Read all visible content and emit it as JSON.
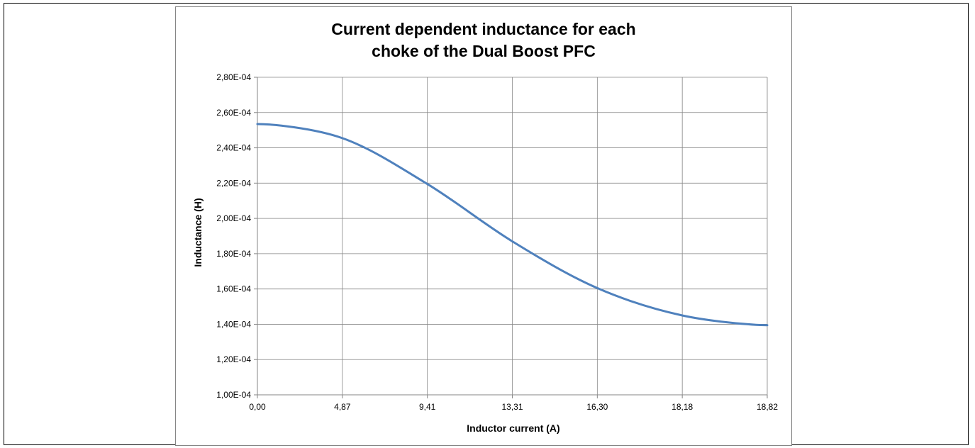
{
  "chart_data": {
    "type": "line",
    "title_lines": [
      "Current dependent inductance for each",
      "choke of the Dual Boost PFC"
    ],
    "xlabel": "Inductor current (A)",
    "ylabel": "Inductance (H)",
    "x_tick_labels": [
      "0,00",
      "4,87",
      "9,41",
      "13,31",
      "16,30",
      "18,18",
      "18,82"
    ],
    "y_tick_labels": [
      "1,00E-04",
      "1,20E-04",
      "1,40E-04",
      "1,60E-04",
      "1,80E-04",
      "2,00E-04",
      "2,20E-04",
      "2,40E-04",
      "2,60E-04",
      "2,80E-04"
    ],
    "ylim": [
      0.0001,
      0.00028
    ],
    "grid": true,
    "legend": "none",
    "series_color": "#4F81BD",
    "series": [
      {
        "x": [
          "0,00",
          "4,87",
          "9,41",
          "13,31",
          "16,30",
          "18,18",
          "18,82"
        ],
        "values": [
          0.0002535,
          0.0002455,
          0.0002195,
          0.000187,
          0.0001605,
          0.000145,
          0.0001395
        ]
      }
    ]
  }
}
